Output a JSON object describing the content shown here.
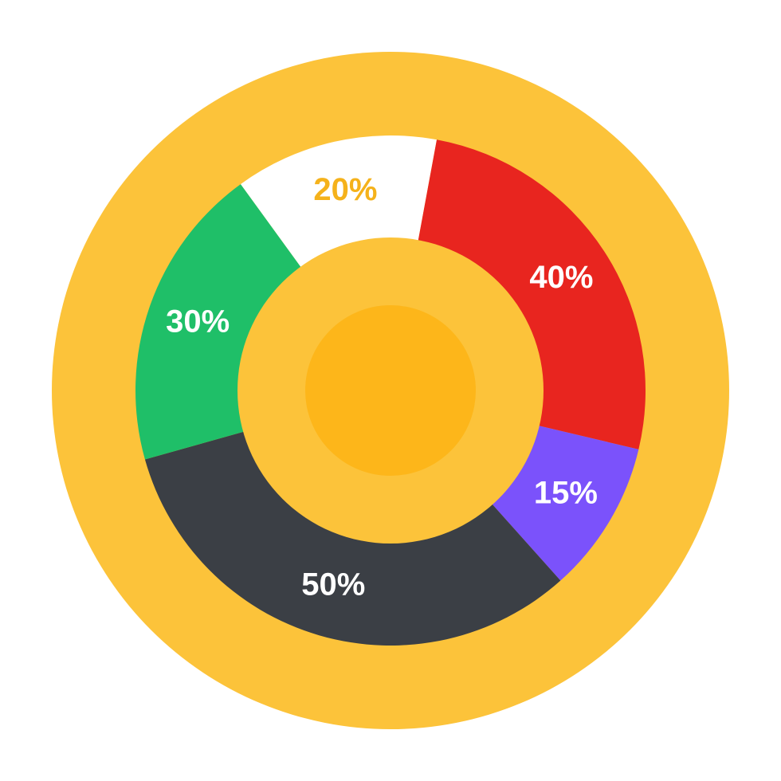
{
  "chart_data": {
    "type": "donut",
    "values": [
      20,
      40,
      15,
      50,
      30
    ],
    "value_labels": [
      "20%",
      "40%",
      "15%",
      "50%",
      "30%"
    ],
    "colors": [
      "#ffffff",
      "#e8251f",
      "#7b52fb",
      "#3b3f45",
      "#1fbf68"
    ],
    "label_colors": [
      "#f5b21b",
      "#ffffff",
      "#ffffff",
      "#ffffff",
      "#ffffff"
    ]
  }
}
